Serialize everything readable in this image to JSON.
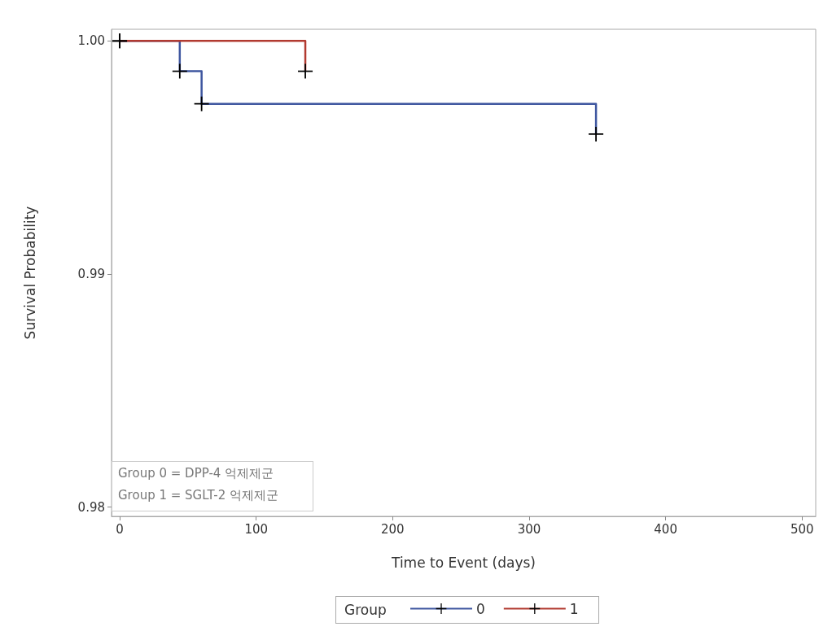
{
  "chart_data": {
    "type": "step",
    "xlabel": "Time to Event (days)",
    "ylabel": "Survival Probability",
    "legend_title": "Group",
    "xlim": [
      -6,
      510
    ],
    "xticks": [
      0,
      100,
      200,
      300,
      400,
      500
    ],
    "ylim": [
      0.9796,
      1.0005
    ],
    "yticks": [
      {
        "value": 0.98,
        "label": "0.98"
      },
      {
        "value": 0.99,
        "label": "0.99"
      },
      {
        "value": 1.0,
        "label": "1.00"
      }
    ],
    "grid": false,
    "legend": "bottom",
    "marker": "cross",
    "line_style": "solid",
    "annotations": [
      "Group 0 = DPP-4 억제제군",
      "Group 1 = SGLT-2 억제제군"
    ],
    "series": [
      {
        "name": "0",
        "color": "#3f57a0",
        "x": [
          0,
          44,
          60,
          349
        ],
        "values": [
          1.0,
          0.9987,
          0.9973,
          0.996
        ]
      },
      {
        "name": "1",
        "color": "#b23a30",
        "x": [
          0,
          136
        ],
        "values": [
          1.0,
          0.9987
        ]
      }
    ]
  }
}
